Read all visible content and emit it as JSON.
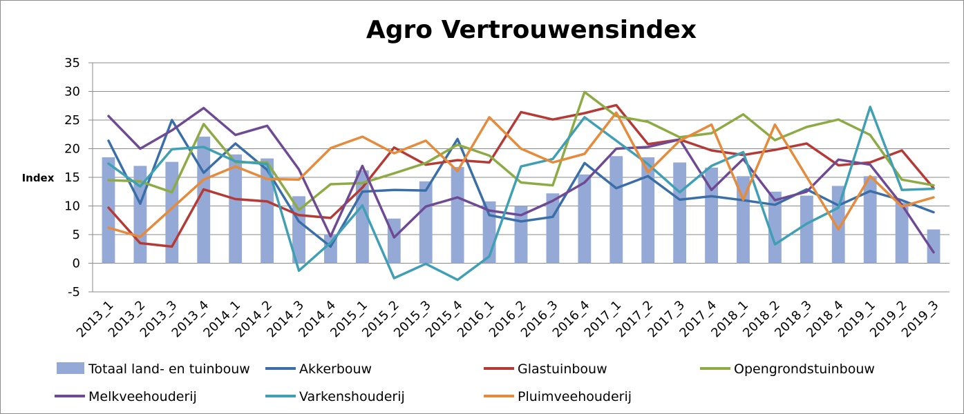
{
  "chart_data": {
    "type": "bar",
    "title": "Agro Vertrouwensindex",
    "ylabel": "Index",
    "xlabel": "",
    "ylim": [
      -5,
      35
    ],
    "yticks": [
      -5,
      0,
      5,
      10,
      15,
      20,
      25,
      30,
      35
    ],
    "grid": "horizontal",
    "legend_position": "bottom",
    "categories": [
      "2013_1",
      "2013_2",
      "2013_3",
      "2013_4",
      "2014_1",
      "2014_2",
      "2014_3",
      "2014_4",
      "2015_1",
      "2015_2",
      "2015_3",
      "2015_4",
      "2016_1",
      "2016_2",
      "2016_3",
      "2016_4",
      "2017_1",
      "2017_2",
      "2017_3",
      "2017_4",
      "2018_1",
      "2018_2",
      "2018_3",
      "2018_4",
      "2019_1",
      "2019_2",
      "2019_3"
    ],
    "series": [
      {
        "name": "Totaal land- en tuinbouw",
        "type": "bar",
        "color": "#95a9d6",
        "values": [
          18.5,
          17.0,
          17.7,
          22.1,
          19.0,
          18.3,
          11.7,
          5.0,
          16.2,
          7.8,
          14.3,
          16.8,
          10.8,
          10.0,
          12.2,
          15.5,
          18.7,
          18.5,
          17.6,
          16.7,
          15.2,
          12.5,
          11.8,
          13.5,
          15.2,
          10.6,
          5.9
        ]
      },
      {
        "name": "Akkerbouw",
        "type": "line",
        "color": "#3a6ea8",
        "values": [
          21.4,
          10.4,
          25.0,
          15.8,
          20.9,
          16.3,
          7.3,
          2.9,
          12.5,
          12.8,
          12.7,
          21.7,
          8.4,
          7.3,
          8.1,
          17.5,
          13.1,
          15.2,
          11.1,
          11.7,
          11.0,
          10.2,
          12.9,
          10.1,
          12.6,
          11.0,
          8.9
        ]
      },
      {
        "name": "Glastuinbouw",
        "type": "line",
        "color": "#b53a36",
        "values": [
          9.7,
          3.5,
          2.9,
          12.9,
          11.2,
          10.8,
          8.4,
          7.9,
          13.2,
          20.2,
          17.2,
          18.0,
          17.6,
          26.4,
          25.1,
          26.2,
          27.6,
          20.8,
          21.6,
          19.7,
          18.9,
          19.8,
          20.9,
          17.1,
          17.6,
          19.7,
          13.1
        ]
      },
      {
        "name": "Opengrondstuinbouw",
        "type": "line",
        "color": "#8cab44",
        "values": [
          14.5,
          14.3,
          12.4,
          24.3,
          17.6,
          17.6,
          9.3,
          13.8,
          14.0,
          15.7,
          17.5,
          20.7,
          18.8,
          14.1,
          13.6,
          29.9,
          25.7,
          24.7,
          22.0,
          22.7,
          26.0,
          21.5,
          23.8,
          25.1,
          22.4,
          14.6,
          13.6
        ]
      },
      {
        "name": "Melkveehouderij",
        "type": "line",
        "color": "#6e4a94",
        "values": [
          25.7,
          20.0,
          23.2,
          27.1,
          22.4,
          24.0,
          16.4,
          4.7,
          17.0,
          4.5,
          9.9,
          11.5,
          9.2,
          8.4,
          10.9,
          14.1,
          20.0,
          20.3,
          21.6,
          12.8,
          18.2,
          11.0,
          12.5,
          18.1,
          17.2,
          10.2,
          1.9
        ]
      },
      {
        "name": "Varkenshouderij",
        "type": "line",
        "color": "#3e9fb5",
        "values": [
          17.4,
          13.4,
          19.9,
          20.3,
          17.8,
          17.3,
          -1.3,
          3.6,
          10.1,
          -2.6,
          -0.1,
          -2.9,
          1.2,
          16.9,
          18.2,
          25.5,
          21.4,
          17.3,
          12.4,
          17.0,
          19.4,
          3.3,
          6.9,
          9.7,
          27.3,
          12.8,
          13.0
        ]
      },
      {
        "name": "Pluimveehouderij",
        "type": "line",
        "color": "#e68a3b",
        "values": [
          6.2,
          4.6,
          9.6,
          14.6,
          16.9,
          14.7,
          14.6,
          20.1,
          22.1,
          19.2,
          21.4,
          16.1,
          25.5,
          20.0,
          17.6,
          19.1,
          26.3,
          15.9,
          21.4,
          24.2,
          11.1,
          24.2,
          15.1,
          5.9,
          15.2,
          9.9,
          11.5
        ]
      }
    ]
  }
}
